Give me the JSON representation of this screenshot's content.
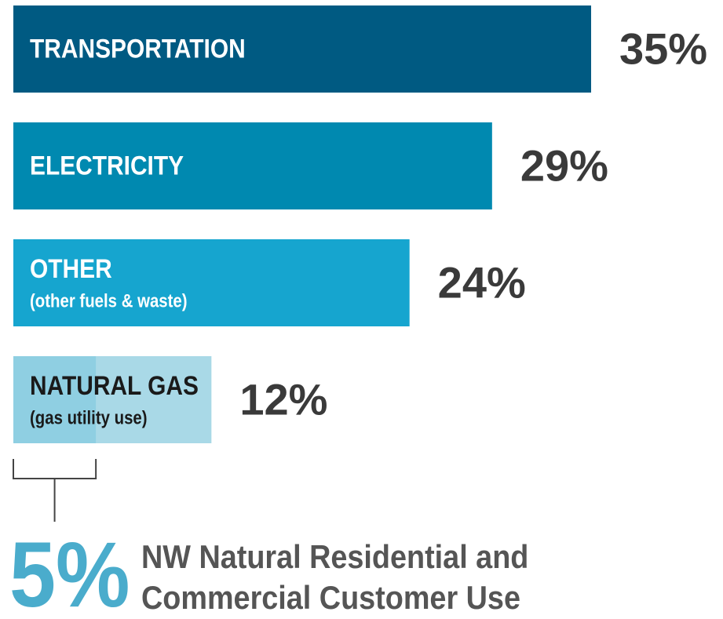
{
  "chart_data": {
    "type": "bar",
    "categories": [
      "TRANSPORTATION",
      "ELECTRICITY",
      "OTHER",
      "NATURAL GAS"
    ],
    "sublabels": [
      null,
      null,
      "(other fuels & waste)",
      "(gas utility use)"
    ],
    "values": [
      35,
      29,
      24,
      12
    ],
    "value_labels": [
      "35%",
      "29%",
      "24%",
      "12%"
    ],
    "colors": [
      "#005a82",
      "#0089b0",
      "#16a5cf",
      "#a9d9e7"
    ],
    "annotation": {
      "value": 5,
      "label": "5%",
      "color": "#8fcfe2",
      "text": [
        "NW Natural Residential and",
        "Commercial Customer Use"
      ]
    }
  }
}
